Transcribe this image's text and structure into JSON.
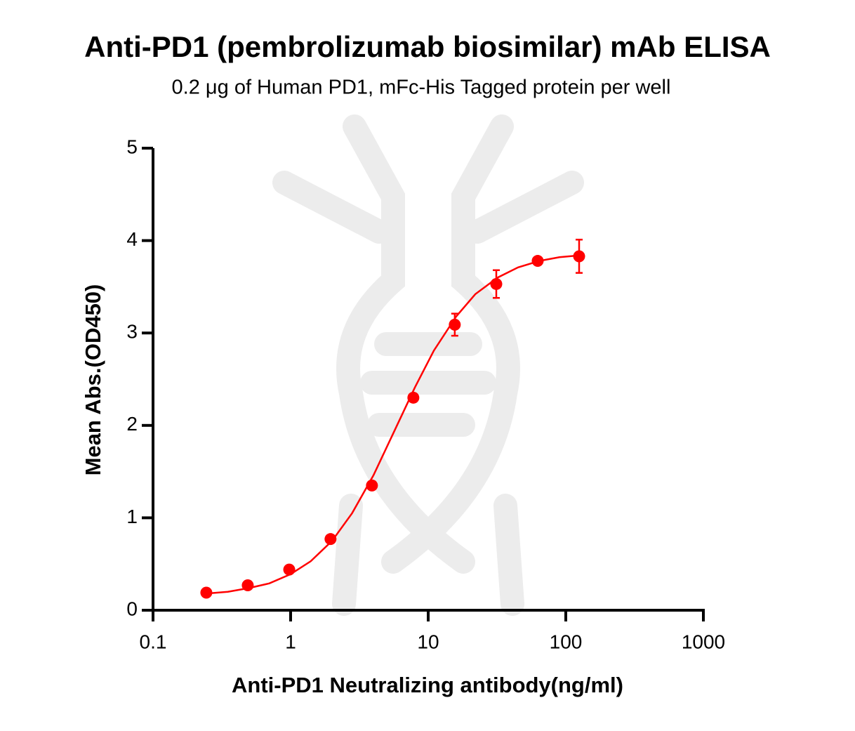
{
  "chart_data": {
    "type": "scatter",
    "title": "Anti-PD1 (pembrolizumab biosimilar) mAb ELISA",
    "subtitle": "0.2 μg of Human PD1, mFc-His Tagged protein per well",
    "x_label": "Anti-PD1 Neutralizing antibody(ng/ml)",
    "y_label": "Mean Abs.(OD450)",
    "x_scale": "log",
    "xlim": [
      0.1,
      1000
    ],
    "xticks": [
      0.1,
      1,
      10,
      100,
      1000
    ],
    "ylim": [
      0,
      5
    ],
    "yticks": [
      0,
      1,
      2,
      3,
      4,
      5
    ],
    "series": [
      {
        "color": "#ff0000",
        "x": [
          0.244,
          0.488,
          0.977,
          1.95,
          3.9,
          7.8,
          15.6,
          31.25,
          62.5,
          125
        ],
        "values": [
          0.19,
          0.27,
          0.44,
          0.77,
          1.35,
          2.3,
          3.09,
          3.53,
          3.78,
          3.83
        ],
        "errors": [
          0,
          0,
          0,
          0,
          0,
          0,
          0.12,
          0.15,
          0,
          0.18
        ]
      }
    ],
    "fit_curve": {
      "color": "#ff0000",
      "x": [
        0.244,
        0.35,
        0.5,
        0.7,
        1,
        1.4,
        2,
        2.8,
        4,
        5.6,
        8,
        11,
        16,
        22,
        32,
        45,
        64,
        90,
        125
      ],
      "values": [
        0.18,
        0.2,
        0.24,
        0.29,
        0.39,
        0.53,
        0.75,
        1.05,
        1.46,
        1.92,
        2.41,
        2.81,
        3.18,
        3.42,
        3.6,
        3.71,
        3.78,
        3.82,
        3.84
      ]
    }
  }
}
